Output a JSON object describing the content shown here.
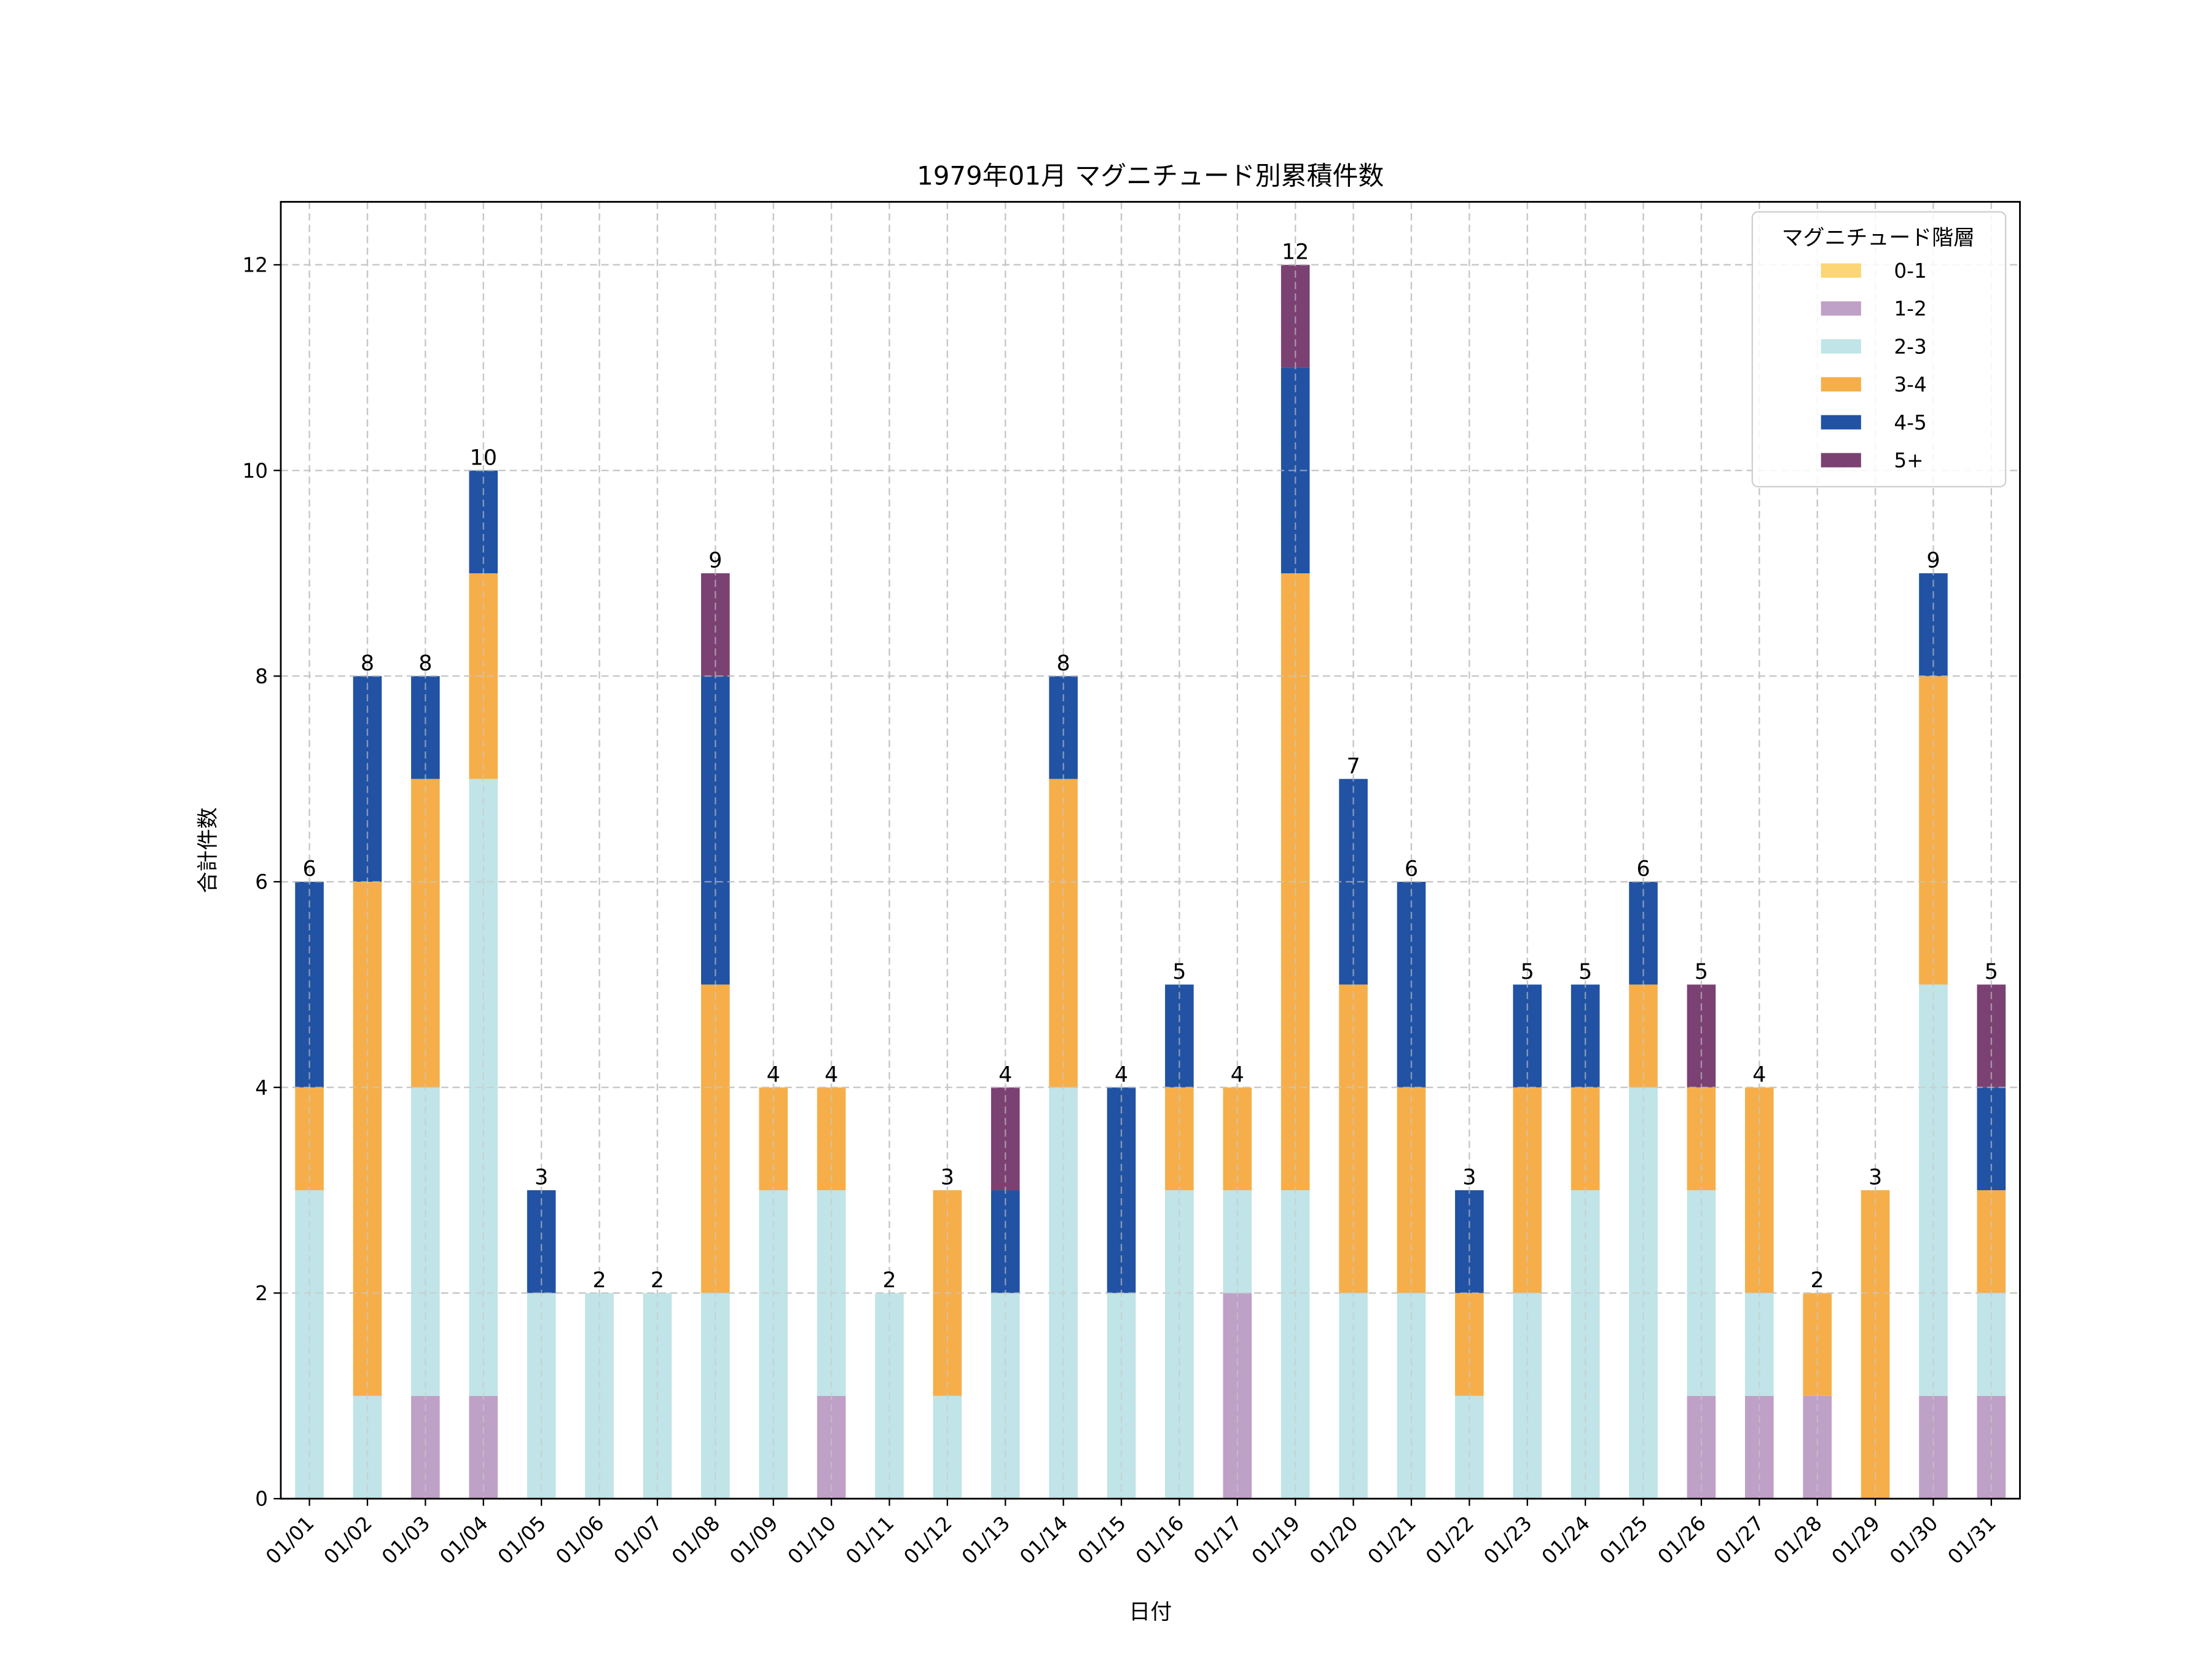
{
  "chart_data": {
    "type": "bar",
    "stacked": true,
    "title": "1979年01月 マグニチュード別累積件数",
    "xlabel": "日付",
    "ylabel": "合計件数",
    "ylim": [
      0,
      12.6
    ],
    "yticks": [
      0,
      2,
      4,
      6,
      8,
      10,
      12
    ],
    "grid": true,
    "legend": {
      "title": "マグニチュード階層",
      "placement": "top-right"
    },
    "categories": [
      "01/01",
      "01/02",
      "01/03",
      "01/04",
      "01/05",
      "01/06",
      "01/07",
      "01/08",
      "01/09",
      "01/10",
      "01/11",
      "01/12",
      "01/13",
      "01/14",
      "01/15",
      "01/16",
      "01/17",
      "01/19",
      "01/20",
      "01/21",
      "01/22",
      "01/23",
      "01/24",
      "01/25",
      "01/26",
      "01/27",
      "01/28",
      "01/29",
      "01/30",
      "01/31"
    ],
    "series": [
      {
        "name": "0-1",
        "color": "#fcd575",
        "values": [
          0,
          0,
          0,
          0,
          0,
          0,
          0,
          0,
          0,
          0,
          0,
          0,
          0,
          0,
          0,
          0,
          0,
          0,
          0,
          0,
          0,
          0,
          0,
          0,
          0,
          0,
          0,
          0,
          0,
          0
        ]
      },
      {
        "name": "1-2",
        "color": "#bfa0c6",
        "values": [
          0,
          0,
          1,
          1,
          0,
          0,
          0,
          0,
          0,
          1,
          0,
          0,
          0,
          0,
          0,
          0,
          2,
          0,
          0,
          0,
          0,
          0,
          0,
          0,
          1,
          1,
          1,
          0,
          1,
          1
        ]
      },
      {
        "name": "2-3",
        "color": "#c0e4e7",
        "values": [
          3,
          1,
          3,
          6,
          2,
          2,
          2,
          2,
          3,
          2,
          2,
          1,
          2,
          4,
          2,
          3,
          1,
          3,
          2,
          2,
          1,
          2,
          3,
          4,
          2,
          1,
          0,
          0,
          4,
          1
        ]
      },
      {
        "name": "3-4",
        "color": "#f6ae4a",
        "values": [
          1,
          5,
          3,
          2,
          0,
          0,
          0,
          3,
          1,
          1,
          0,
          2,
          0,
          3,
          0,
          1,
          1,
          6,
          3,
          2,
          1,
          2,
          1,
          1,
          1,
          2,
          1,
          3,
          3,
          1
        ]
      },
      {
        "name": "4-5",
        "color": "#2152a3",
        "values": [
          2,
          2,
          1,
          1,
          1,
          0,
          0,
          3,
          0,
          0,
          0,
          0,
          1,
          1,
          2,
          1,
          0,
          2,
          2,
          2,
          1,
          1,
          1,
          1,
          0,
          0,
          0,
          0,
          1,
          1
        ]
      },
      {
        "name": "5+",
        "color": "#7b4172",
        "values": [
          0,
          0,
          0,
          0,
          0,
          0,
          0,
          1,
          0,
          0,
          0,
          0,
          1,
          0,
          0,
          0,
          0,
          1,
          0,
          0,
          0,
          0,
          0,
          0,
          1,
          0,
          0,
          0,
          0,
          1
        ]
      }
    ],
    "totals": [
      6,
      8,
      8,
      10,
      3,
      2,
      2,
      9,
      4,
      4,
      2,
      3,
      4,
      8,
      4,
      5,
      4,
      12,
      7,
      6,
      3,
      5,
      5,
      6,
      5,
      4,
      2,
      3,
      9,
      5
    ]
  }
}
